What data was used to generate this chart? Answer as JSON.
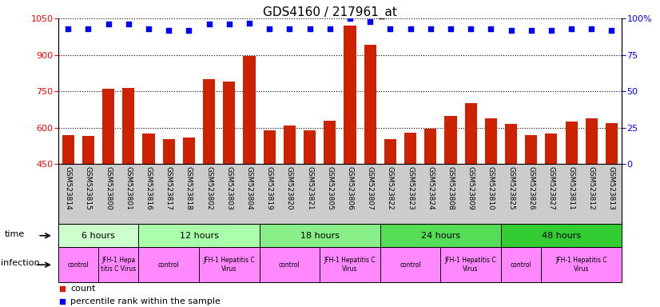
{
  "title": "GDS4160 / 217961_at",
  "samples": [
    "GSM523814",
    "GSM523815",
    "GSM523800",
    "GSM523801",
    "GSM523816",
    "GSM523817",
    "GSM523818",
    "GSM523802",
    "GSM523803",
    "GSM523804",
    "GSM523819",
    "GSM523820",
    "GSM523821",
    "GSM523805",
    "GSM523806",
    "GSM523807",
    "GSM523822",
    "GSM523823",
    "GSM523824",
    "GSM523808",
    "GSM523809",
    "GSM523810",
    "GSM523825",
    "GSM523826",
    "GSM523827",
    "GSM523811",
    "GSM523812",
    "GSM523813"
  ],
  "counts": [
    570,
    565,
    760,
    765,
    575,
    555,
    560,
    800,
    790,
    895,
    590,
    610,
    590,
    630,
    1020,
    940,
    555,
    580,
    595,
    650,
    700,
    640,
    615,
    570,
    575,
    625,
    640,
    620
  ],
  "percentile": [
    93,
    93,
    96,
    96,
    93,
    92,
    92,
    96,
    96,
    97,
    93,
    93,
    93,
    93,
    100,
    98,
    93,
    93,
    93,
    93,
    93,
    93,
    92,
    92,
    92,
    93,
    93,
    92
  ],
  "ylim_left": [
    450,
    1050
  ],
  "ylim_right": [
    0,
    100
  ],
  "yticks_left": [
    450,
    600,
    750,
    900,
    1050
  ],
  "yticks_right": [
    0,
    25,
    50,
    75,
    100
  ],
  "bar_color": "#cc2200",
  "dot_color": "#0000ff",
  "time_groups": [
    {
      "label": "6 hours",
      "start": 0,
      "end": 4
    },
    {
      "label": "12 hours",
      "start": 4,
      "end": 10
    },
    {
      "label": "18 hours",
      "start": 10,
      "end": 16
    },
    {
      "label": "24 hours",
      "start": 16,
      "end": 22
    },
    {
      "label": "48 hours",
      "start": 22,
      "end": 28
    }
  ],
  "time_colors": [
    "#ccffcc",
    "#aaffaa",
    "#88ee88",
    "#55dd55",
    "#33cc33"
  ],
  "infection_groups": [
    {
      "label": "control",
      "start": 0,
      "end": 2
    },
    {
      "label": "JFH-1 Hepa\ntitis C Virus",
      "start": 2,
      "end": 4
    },
    {
      "label": "control",
      "start": 4,
      "end": 7
    },
    {
      "label": "JFH-1 Hepatitis C\nVirus",
      "start": 7,
      "end": 10
    },
    {
      "label": "control",
      "start": 10,
      "end": 13
    },
    {
      "label": "JFH-1 Hepatitis C\nVirus",
      "start": 13,
      "end": 16
    },
    {
      "label": "control",
      "start": 16,
      "end": 19
    },
    {
      "label": "JFH-1 Hepatitis C\nVirus",
      "start": 19,
      "end": 22
    },
    {
      "label": "control",
      "start": 22,
      "end": 24
    },
    {
      "label": "JFH-1 Hepatitis C\nVirus",
      "start": 24,
      "end": 28
    }
  ],
  "infect_color": "#ff88ff",
  "tick_bg": "#cccccc",
  "LM": 0.088,
  "RM": 0.058
}
